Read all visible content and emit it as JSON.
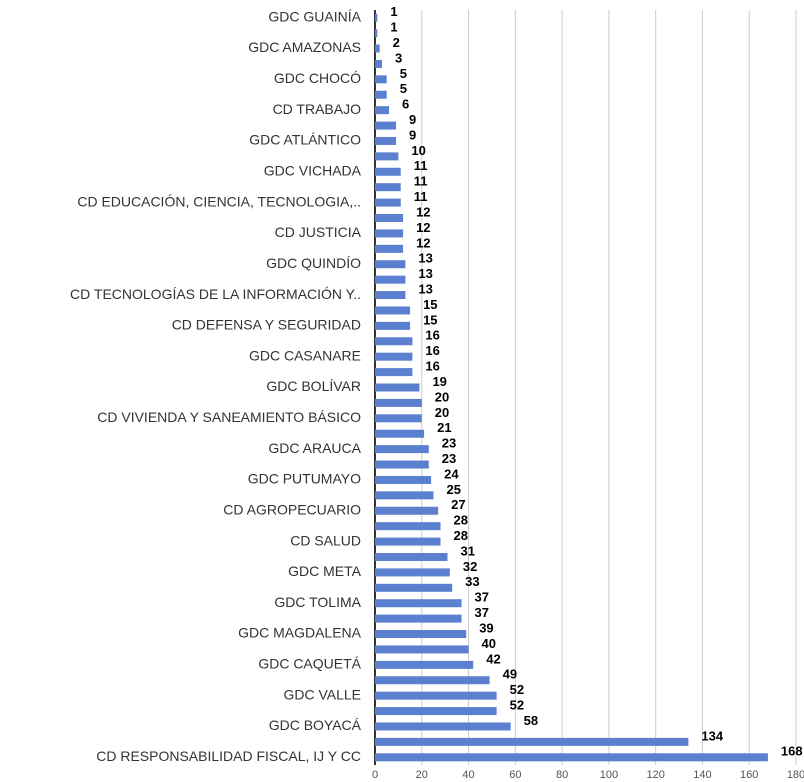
{
  "chart_data": {
    "type": "bar",
    "orientation": "horizontal",
    "categories": [
      "GDC GUAINÍA",
      null,
      "GDC AMAZONAS",
      null,
      "GDC CHOCÓ",
      null,
      "CD TRABAJO",
      null,
      "GDC ATLÁNTICO",
      null,
      "GDC VICHADA",
      null,
      "CD EDUCACIÓN,  CIENCIA, TECNOLOGIA,..",
      null,
      "CD JUSTICIA",
      null,
      "GDC QUINDÍO",
      null,
      "CD TECNOLOGÍAS DE LA INFORMACIÓN Y..",
      null,
      "CD DEFENSA Y SEGURIDAD",
      null,
      "GDC CASANARE",
      null,
      "GDC BOLÍVAR",
      null,
      "CD VIVIENDA Y SANEAMIENTO BÁSICO",
      null,
      "GDC ARAUCA",
      null,
      "GDC PUTUMAYO",
      null,
      "CD AGROPECUARIO",
      null,
      "CD SALUD",
      null,
      "GDC META",
      null,
      "GDC TOLIMA",
      null,
      "GDC MAGDALENA",
      null,
      "GDC CAQUETÁ",
      null,
      "GDC VALLE",
      null,
      "GDC BOYACÁ",
      null,
      "CD RESPONSABILIDAD FISCAL, IJ Y CC"
    ],
    "values": [
      1,
      1,
      2,
      3,
      5,
      5,
      6,
      9,
      9,
      10,
      11,
      11,
      11,
      12,
      12,
      12,
      13,
      13,
      13,
      15,
      15,
      16,
      16,
      16,
      19,
      20,
      20,
      21,
      23,
      23,
      24,
      25,
      27,
      28,
      28,
      31,
      32,
      33,
      37,
      37,
      39,
      40,
      42,
      49,
      52,
      52,
      58,
      134,
      168
    ],
    "color": "#5b80cf",
    "xlim": [
      0,
      180
    ],
    "xticks": [
      0,
      20,
      40,
      60,
      80,
      100,
      120,
      140,
      160,
      180
    ],
    "grid": true
  }
}
